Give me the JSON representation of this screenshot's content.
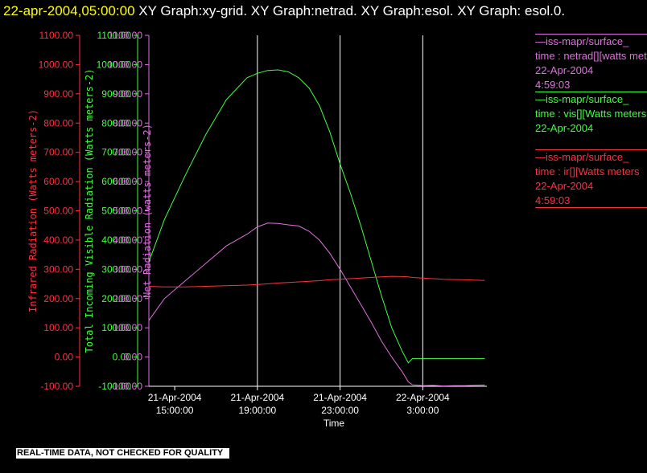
{
  "header": {
    "timestamp": "22-apr-2004,05:00:00",
    "title": "XY Graph:xy-grid.  XY Graph:netrad.  XY Graph:esol.  XY Graph: esol.0."
  },
  "footer": {
    "notice": "REAL-TIME DATA, NOT CHECKED FOR QUALITY"
  },
  "legend": [
    {
      "source": "—iss-mapr/surface_",
      "variable": "time : netrad[][watts meters",
      "date": "22-Apr-2004",
      "time": "4:59:03",
      "color": "#e070e0"
    },
    {
      "source": "—iss-mapr/surface_",
      "variable": "time : vis[][Watts meters",
      "date": "22-Apr-2004",
      "time": "",
      "color": "#40ff40"
    },
    {
      "source": "—iss-mapr/surface_",
      "variable": "time : ir[][Watts meters",
      "date": "22-Apr-2004",
      "time": "4:59:03",
      "color": "#ff3040"
    }
  ],
  "chart_data": {
    "type": "line",
    "xlabel": "Time",
    "x_ticks": [
      {
        "date": "21-Apr-2004",
        "time": "15:00:00",
        "hours": 15
      },
      {
        "date": "21-Apr-2004",
        "time": "19:00:00",
        "hours": 19
      },
      {
        "date": "21-Apr-2004",
        "time": "23:00:00",
        "hours": 23
      },
      {
        "date": "22-Apr-2004",
        "time": "3:00:00",
        "hours": 27
      }
    ],
    "xlim_hours": [
      13.75,
      30.1
    ],
    "vertical_gridlines_hours": [
      19,
      23,
      27
    ],
    "axes": [
      {
        "label": "Infrared Radiation (Watts meters-2)",
        "color": "#ff3040",
        "ylim": [
          -100,
          1100
        ],
        "ticks": [
          "-100.00",
          "0.00",
          "100.00",
          "200.00",
          "300.00",
          "400.00",
          "500.00",
          "600.00",
          "700.00",
          "800.00",
          "900.00",
          "1000.00",
          "1100.00"
        ]
      },
      {
        "label": "Total Incoming Visible Radiation (Watts meters-2)",
        "color": "#40ff40",
        "ylim": [
          -100,
          1100
        ],
        "ticks": [
          "-100.00",
          "0.00",
          "100.00",
          "200.00",
          "300.00",
          "400.00",
          "500.00",
          "600.00",
          "700.00",
          "800.00",
          "900.00",
          "1000.00",
          "1100.00"
        ]
      },
      {
        "label": "Net Radiation (watts meters-2)",
        "color": "#e070e0",
        "ylim": [
          -100,
          1100
        ],
        "ticks": [
          "-100.00",
          "0.00",
          "100.00",
          "200.00",
          "300.00",
          "400.00",
          "500.00",
          "600.00",
          "700.00",
          "800.00",
          "900.00",
          "1000.00",
          "1100.00"
        ]
      }
    ],
    "series": [
      {
        "color": "#e070e0",
        "x": [
          13.75,
          14.5,
          15.5,
          16.5,
          17.5,
          18.5,
          19.0,
          19.5,
          20.0,
          20.5,
          21.0,
          21.5,
          22.0,
          22.5,
          23.0,
          23.5,
          24.0,
          24.5,
          25.0,
          25.5,
          26.0,
          26.3,
          26.5,
          27.0,
          27.5,
          28.0,
          28.5,
          29.0,
          29.5,
          30.0
        ],
        "y": [
          125,
          200,
          260,
          320,
          380,
          420,
          445,
          458,
          457,
          452,
          448,
          430,
          400,
          355,
          300,
          240,
          180,
          120,
          55,
          0,
          -50,
          -85,
          -95,
          -98,
          -97,
          -99,
          -98,
          -98,
          -97,
          -96
        ]
      },
      {
        "color": "#40ff40",
        "x": [
          13.75,
          14.5,
          15.5,
          16.5,
          17.5,
          18.5,
          19.0,
          19.5,
          20.0,
          20.5,
          21.0,
          21.5,
          22.0,
          22.5,
          23.0,
          23.5,
          24.0,
          24.5,
          25.0,
          25.5,
          26.0,
          26.3,
          26.5,
          27.0,
          27.5,
          28.0,
          28.5,
          29.0,
          29.5,
          30.0
        ],
        "y": [
          325,
          470,
          620,
          760,
          880,
          955,
          970,
          980,
          982,
          975,
          955,
          920,
          860,
          770,
          660,
          560,
          450,
          330,
          210,
          100,
          20,
          -20,
          -5,
          -5,
          -5,
          -5,
          -5,
          -5,
          -5,
          -5
        ]
      },
      {
        "color": "#ff3040",
        "x": [
          13.75,
          14.5,
          15.5,
          16.5,
          17.5,
          18.5,
          19.0,
          19.5,
          20.0,
          20.5,
          21.0,
          21.5,
          22.0,
          22.5,
          23.0,
          23.5,
          24.0,
          24.5,
          25.0,
          25.5,
          26.0,
          26.3,
          26.5,
          27.0,
          27.5,
          28.0,
          28.5,
          29.0,
          29.5,
          30.0
        ],
        "y": [
          242,
          240,
          240,
          242,
          244,
          246,
          248,
          250,
          253,
          255,
          257,
          259,
          261,
          264,
          266,
          268,
          270,
          272,
          274,
          276,
          275,
          274,
          272,
          270,
          268,
          266,
          265,
          264,
          263,
          262
        ]
      }
    ]
  }
}
